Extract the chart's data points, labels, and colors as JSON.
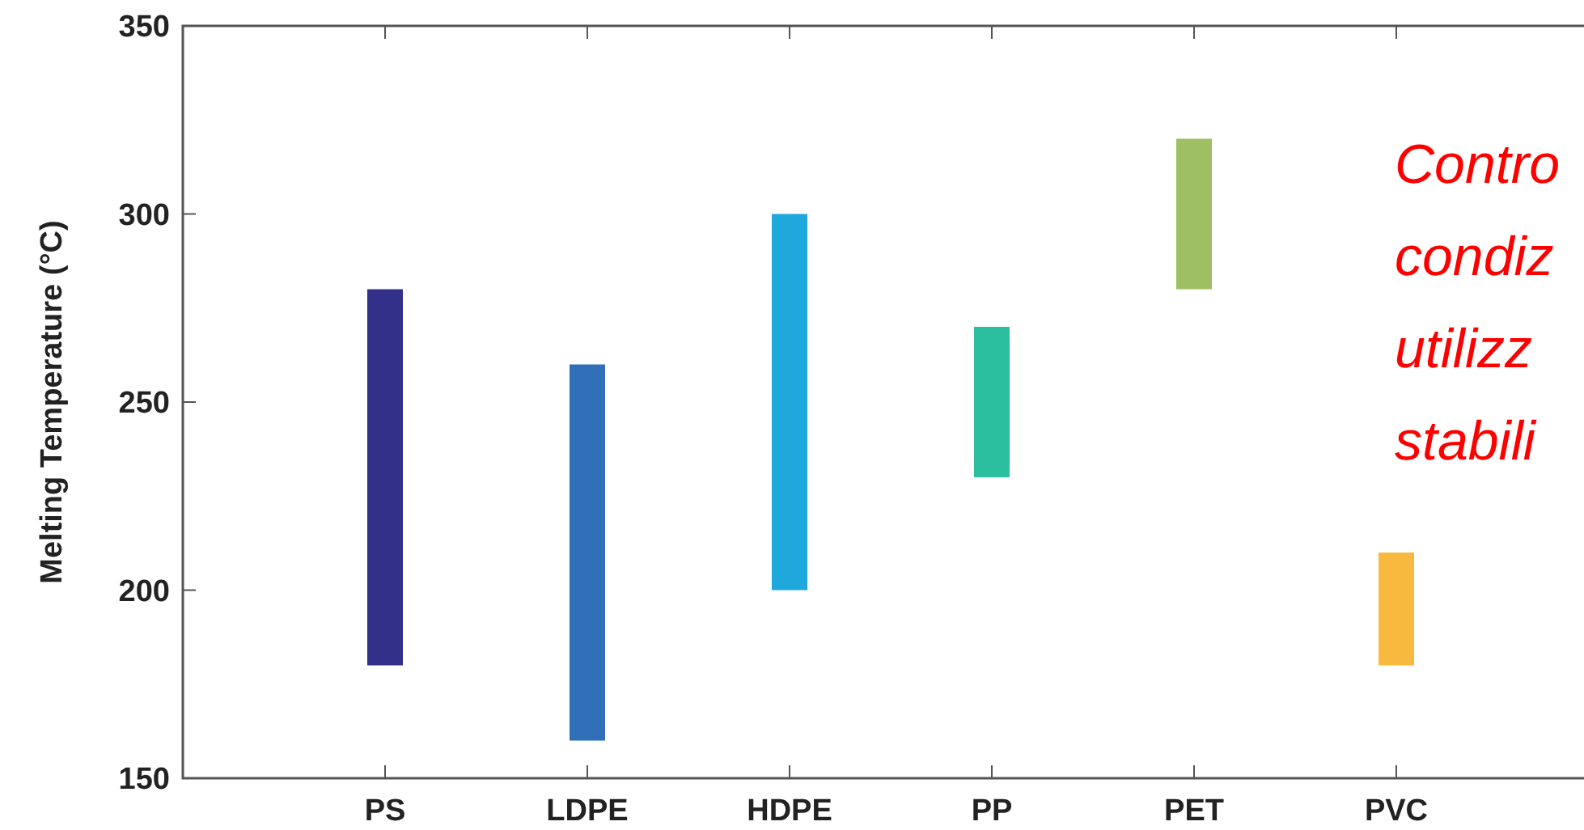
{
  "chart_data": {
    "type": "bar",
    "ylabel": "Melting Temperature (°C)",
    "categories": [
      "PS",
      "LDPE",
      "HDPE",
      "PP",
      "PET",
      "PVC"
    ],
    "base": [
      180,
      160,
      200,
      230,
      280,
      180
    ],
    "values": [
      100,
      100,
      100,
      40,
      40,
      30
    ],
    "colors": [
      "#33308a",
      "#3170b8",
      "#1ea8db",
      "#2bbfa0",
      "#9fbf63",
      "#f7b93e"
    ],
    "ylim": [
      150,
      350
    ],
    "yticks": [
      150,
      200,
      250,
      300,
      350
    ],
    "grid": false,
    "annotations": [
      "Contro\ncondiz\nutilizz\nstabili"
    ]
  }
}
